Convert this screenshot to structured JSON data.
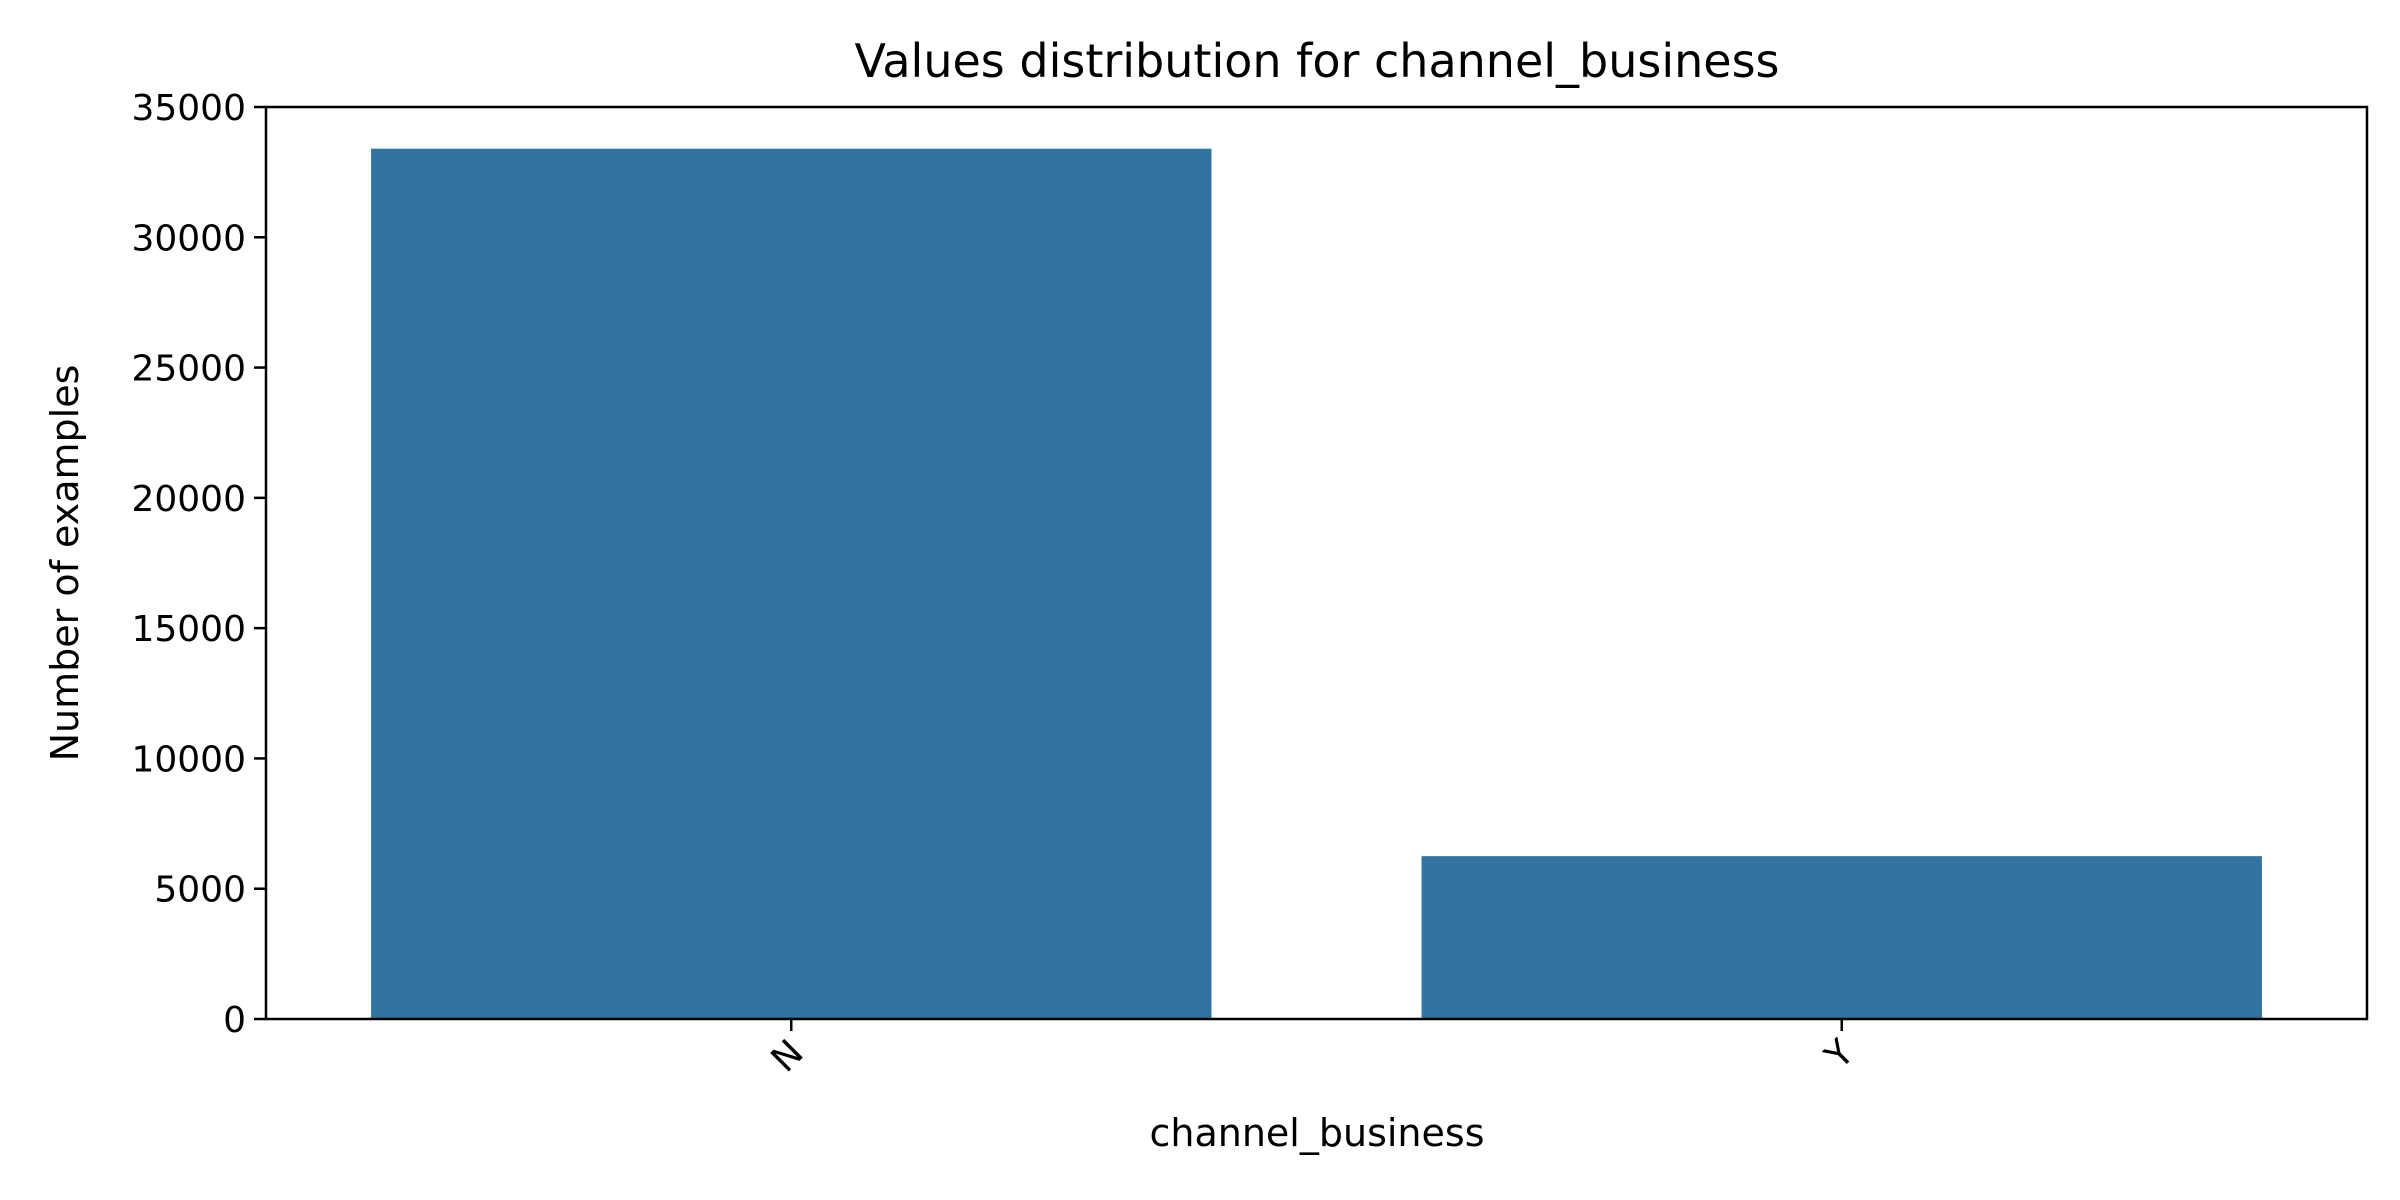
{
  "chart_data": {
    "type": "bar",
    "title": "Values distribution for channel_business",
    "xlabel": "channel_business",
    "ylabel": "Number of examples",
    "categories": [
      "N",
      "Y"
    ],
    "values": [
      33400,
      6250
    ],
    "ylim": [
      0,
      35000
    ],
    "yticks": [
      0,
      5000,
      10000,
      15000,
      20000,
      25000,
      30000,
      35000
    ],
    "bar_color": "#3274a1",
    "grid": false,
    "legend": "none"
  }
}
